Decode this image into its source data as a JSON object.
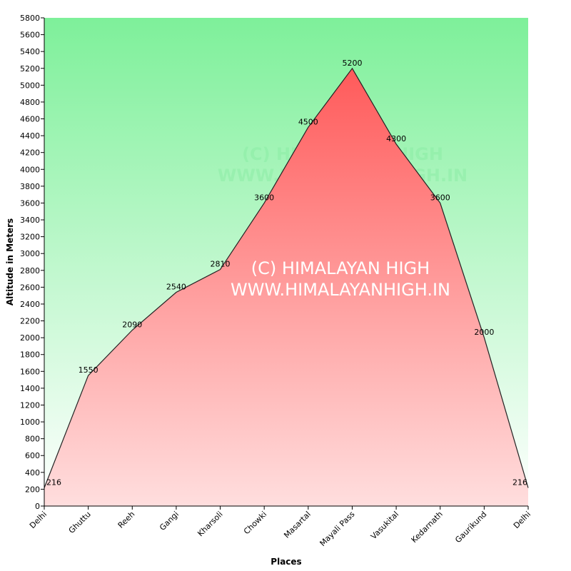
{
  "chart_data": {
    "type": "area",
    "categories": [
      "Delhi",
      "Ghuttu",
      "Reeh",
      "Gangi",
      "Kharsoli",
      "Chowki",
      "Masartal",
      "Mayali Pass",
      "Vasukital",
      "Kedarnath",
      "Gaurikund",
      "Delhi"
    ],
    "values": [
      216,
      1550,
      2090,
      2540,
      2810,
      3600,
      4500,
      5200,
      4300,
      3600,
      2000,
      216
    ],
    "data_labels": [
      "216",
      "1550",
      "2090",
      "2540",
      "2810",
      "3600",
      "4500",
      "5200",
      "4300",
      "3600",
      "2000",
      "216"
    ],
    "ylim": [
      0,
      5800
    ],
    "ytick_step": 200,
    "xlabel": "Places",
    "ylabel": "Altitude in Meters",
    "grid": false,
    "colors": {
      "background_top": "#7ef09a",
      "background_bottom": "#ffffff",
      "area_top": "#ff5a5a",
      "area_bottom": "#ffdede",
      "line": "#222222"
    }
  },
  "watermark": {
    "line1": "(C) HIMALAYAN HIGH",
    "line2": "WWW.HIMALAYANHIGH.IN"
  }
}
